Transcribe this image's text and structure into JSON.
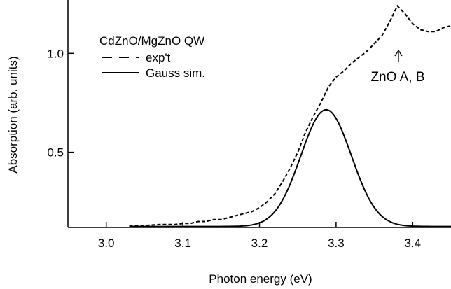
{
  "chart_data": {
    "type": "line",
    "title": "",
    "xlabel": "Photon energy (eV)",
    "ylabel": "Absorption (arb. units)",
    "xlim": [
      2.95,
      3.45
    ],
    "ylim": [
      0.12,
      1.27
    ],
    "xticks": [
      "3.0",
      "3.1",
      "3.2",
      "3.3",
      "3.4"
    ],
    "yticks": [
      "0.5",
      "1.0"
    ],
    "xtick_values": [
      3.0,
      3.1,
      3.2,
      3.3,
      3.4
    ],
    "ytick_values": [
      0.5,
      1.0
    ],
    "grid": false,
    "legend": {
      "title": "CdZnO/MgZnO QW",
      "placement": "top-left",
      "entries": [
        "exp't",
        "Gauss sim."
      ]
    },
    "series": [
      {
        "name": "exp't",
        "style": "dashed",
        "x": [
          3.03,
          3.05,
          3.07,
          3.09,
          3.1,
          3.11,
          3.12,
          3.13,
          3.14,
          3.15,
          3.16,
          3.17,
          3.18,
          3.19,
          3.2,
          3.21,
          3.22,
          3.23,
          3.24,
          3.25,
          3.26,
          3.27,
          3.28,
          3.29,
          3.3,
          3.31,
          3.32,
          3.33,
          3.34,
          3.35,
          3.36,
          3.37,
          3.38,
          3.39,
          3.4,
          3.41,
          3.42,
          3.43,
          3.44,
          3.45
        ],
        "y": [
          0.13,
          0.13,
          0.135,
          0.135,
          0.14,
          0.14,
          0.15,
          0.15,
          0.16,
          0.16,
          0.17,
          0.18,
          0.19,
          0.2,
          0.22,
          0.25,
          0.29,
          0.35,
          0.42,
          0.5,
          0.6,
          0.68,
          0.75,
          0.83,
          0.88,
          0.91,
          0.95,
          0.98,
          1.01,
          1.05,
          1.09,
          1.16,
          1.24,
          1.2,
          1.15,
          1.12,
          1.11,
          1.11,
          1.13,
          1.14
        ]
      },
      {
        "name": "Gauss sim.",
        "style": "solid",
        "baseline": 0.125,
        "amplitude": 0.59,
        "center": 3.287,
        "sigma": 0.033,
        "x_range": [
          3.03,
          3.45
        ]
      }
    ],
    "annotations": [
      {
        "text": "ZnO A, B",
        "x": 3.385,
        "y": 1.0
      }
    ]
  }
}
